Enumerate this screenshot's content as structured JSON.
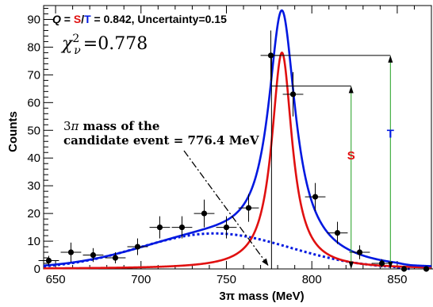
{
  "chart_data": {
    "type": "scatter",
    "xlabel": "3π mass (MeV)",
    "ylabel": "Counts",
    "xlim": [
      643,
      870
    ],
    "ylim": [
      0,
      95
    ],
    "x_ticks": [
      650,
      700,
      750,
      800,
      850
    ],
    "y_ticks": [
      0,
      10,
      20,
      30,
      40,
      50,
      60,
      70,
      80,
      90
    ],
    "header": {
      "q_label": "Q",
      "eq1": " = ",
      "s_label": "S",
      "slash": "/",
      "t_label": "T",
      "rest": " = 0.842, Uncertainty=0.15"
    },
    "chi2_value": "=0.778",
    "annotation": {
      "line1_rest": " mass of the",
      "line2": "candidate event = 776.4 MeV",
      "candidate_mass": 776.4
    },
    "marker_S": "S",
    "marker_T": "T",
    "S_peak": 66,
    "T_peak": 77,
    "S_x": 823,
    "T_x": 846,
    "colors": {
      "total": "#0018e0",
      "signal": "#e01010",
      "background": "#0018e0",
      "S": "#e01010",
      "T": "#0018e0",
      "arrows": "#1f9e1f"
    },
    "points": [
      {
        "x": 646,
        "y": 3,
        "xerr": 6,
        "yerr": 1.7
      },
      {
        "x": 659,
        "y": 6,
        "xerr": 6,
        "yerr": 3.5
      },
      {
        "x": 672,
        "y": 5,
        "xerr": 6,
        "yerr": 2.5
      },
      {
        "x": 685,
        "y": 4,
        "xerr": 6,
        "yerr": 2.0
      },
      {
        "x": 698,
        "y": 8,
        "xerr": 6,
        "yerr": 3.0
      },
      {
        "x": 711,
        "y": 15,
        "xerr": 6,
        "yerr": 4.0
      },
      {
        "x": 724,
        "y": 15,
        "xerr": 6,
        "yerr": 4.0
      },
      {
        "x": 737,
        "y": 20,
        "xerr": 6,
        "yerr": 5.0
      },
      {
        "x": 750,
        "y": 15,
        "xerr": 6,
        "yerr": 4.0
      },
      {
        "x": 763,
        "y": 22,
        "xerr": 6,
        "yerr": 5.0
      },
      {
        "x": 776,
        "y": 77,
        "xerr": 6,
        "yerr": 9.0
      },
      {
        "x": 789,
        "y": 63,
        "xerr": 6,
        "yerr": 8.0
      },
      {
        "x": 802,
        "y": 26,
        "xerr": 6,
        "yerr": 5.0
      },
      {
        "x": 815,
        "y": 13,
        "xerr": 6,
        "yerr": 4.0
      },
      {
        "x": 828,
        "y": 6,
        "xerr": 6,
        "yerr": 2.5
      },
      {
        "x": 841,
        "y": 2,
        "xerr": 6,
        "yerr": 1.5
      },
      {
        "x": 854,
        "y": 0,
        "xerr": 6,
        "yerr": 1.0
      },
      {
        "x": 867,
        "y": 0,
        "xerr": 6,
        "yerr": 1.0
      }
    ],
    "curves": {
      "peak_x": 782.5,
      "total_peak": 89,
      "signal_peak": 78
    }
  }
}
